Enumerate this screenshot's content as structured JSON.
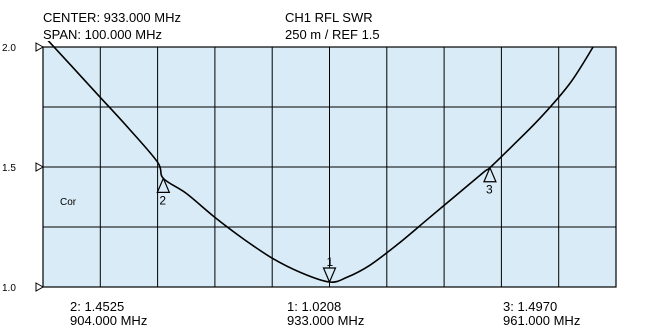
{
  "header": {
    "center": "CENTER: 933.000 MHz",
    "span": "SPAN: 100.000 MHz",
    "channel": "CH1 RFL    SWR",
    "scale": "250 m / REF 1.5"
  },
  "annotation": "Cor",
  "marker_readouts": [
    {
      "id": "2",
      "value": "2:  1.4525",
      "freq": "904.000 MHz"
    },
    {
      "id": "1",
      "value": "1:  1.0208",
      "freq": "933.000 MHz"
    },
    {
      "id": "3",
      "value": "3:  1.4970",
      "freq": "961.000 MHz"
    }
  ],
  "colors": {
    "plot_bg": "#d9ebf6",
    "grid": "#000000",
    "trace": "#000000"
  },
  "chart_data": {
    "type": "line",
    "xlabel": "",
    "ylabel": "",
    "xlim": [
      883,
      983
    ],
    "ylim": [
      1.0,
      2.0
    ],
    "grid": true,
    "ytick_labels": [
      "2.0",
      "1.5",
      "1.0"
    ],
    "series": [
      {
        "x": [
          883,
          888,
          893,
          898,
          903,
          904,
          908,
          913,
          918,
          923,
          928,
          933,
          936,
          940,
          945,
          950,
          955,
          960,
          961,
          965,
          970,
          975,
          979
        ],
        "y": [
          2.05,
          1.92,
          1.79,
          1.66,
          1.52,
          1.4525,
          1.39,
          1.29,
          1.2,
          1.12,
          1.06,
          1.0208,
          1.04,
          1.09,
          1.18,
          1.28,
          1.38,
          1.48,
          1.497,
          1.59,
          1.71,
          1.85,
          2.0
        ]
      }
    ],
    "markers": [
      {
        "label": "2",
        "x": 904,
        "y": 1.4525,
        "direction": "up"
      },
      {
        "label": "1",
        "x": 933,
        "y": 1.0208,
        "direction": "down"
      },
      {
        "label": "3",
        "x": 961,
        "y": 1.497,
        "direction": "up"
      }
    ]
  }
}
